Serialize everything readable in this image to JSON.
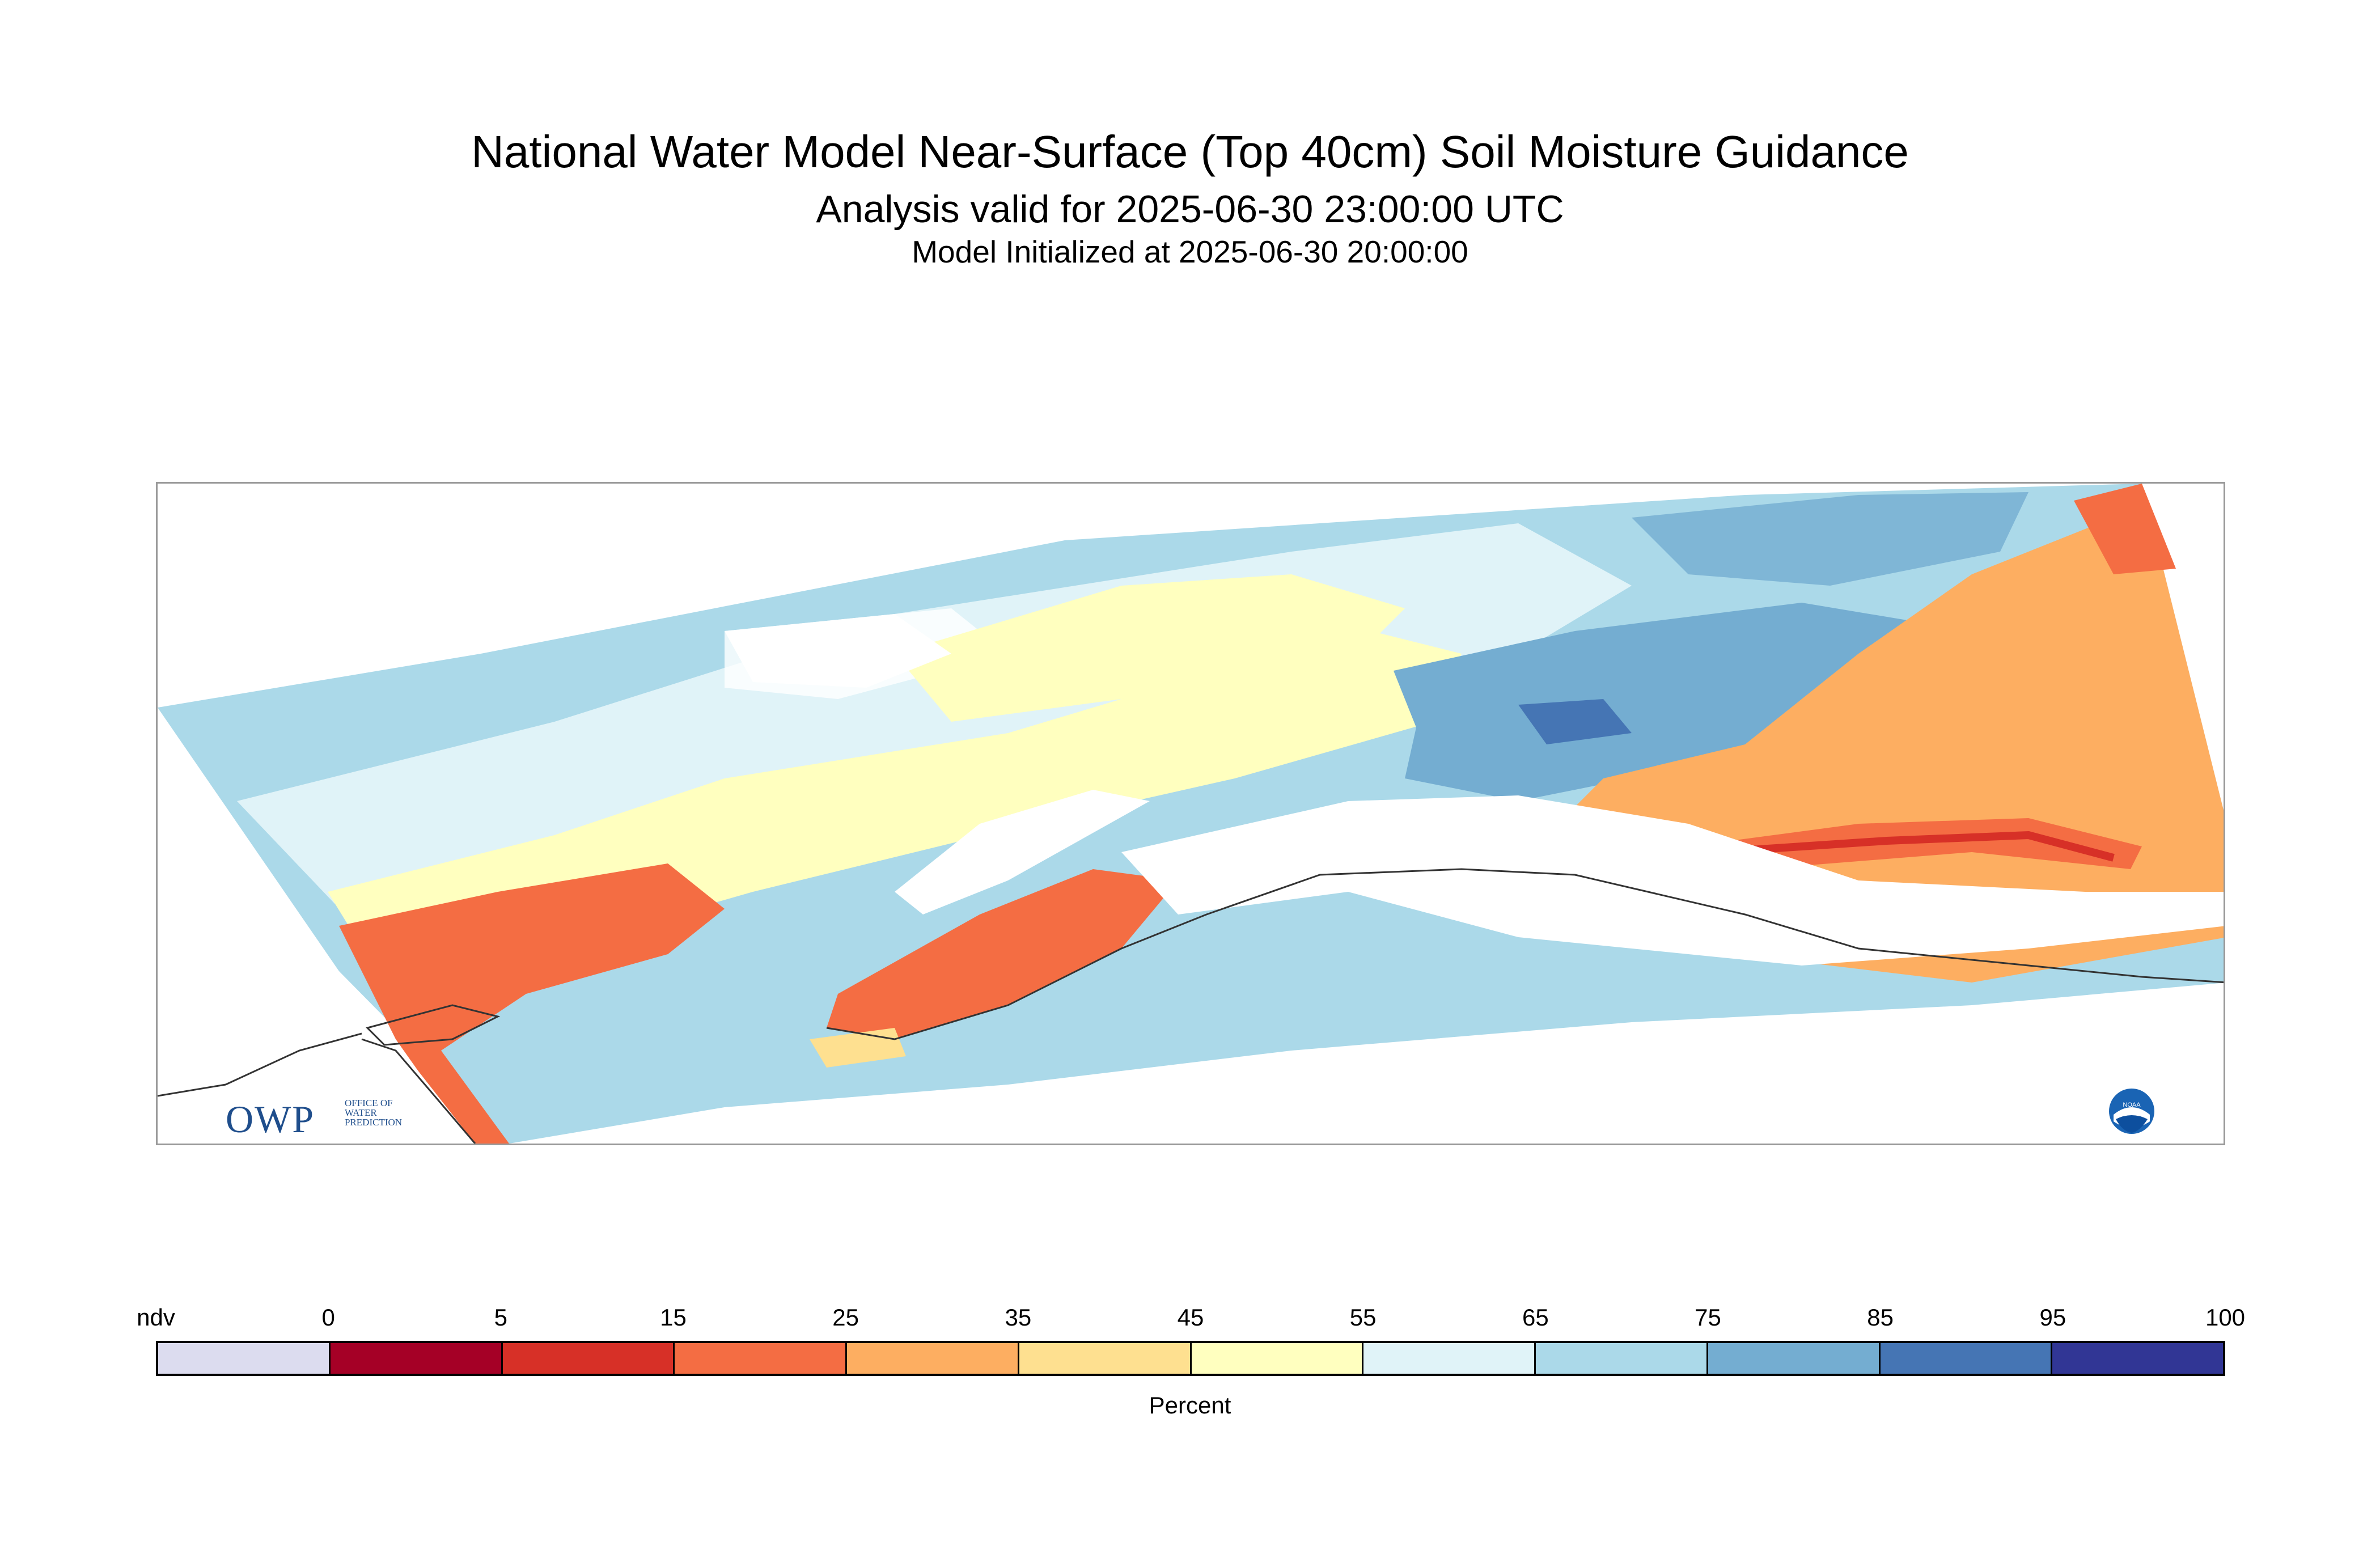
{
  "header": {
    "title": "National Water Model Near-Surface (Top 40cm) Soil Moisture Guidance",
    "subtitle": "Analysis valid for 2025-06-30 23:00:00 UTC",
    "init_line": "Model Initialized at 2025-06-30 20:00:00"
  },
  "logos": {
    "owp_main": "OWP",
    "owp_sub": [
      "OFFICE OF",
      "WATER",
      "PREDICTION"
    ],
    "noaa": "NOAA"
  },
  "legend": {
    "unit": "Percent",
    "tick_labels": [
      "ndv",
      "0",
      "5",
      "15",
      "25",
      "35",
      "45",
      "55",
      "65",
      "75",
      "85",
      "95",
      "100"
    ],
    "colors": [
      "#dcdcef",
      "#a50026",
      "#d73027",
      "#f46d43",
      "#fdae61",
      "#fee090",
      "#ffffbf",
      "#e0f3f8",
      "#abd9e9",
      "#74add1",
      "#4575b4",
      "#313695"
    ]
  }
}
